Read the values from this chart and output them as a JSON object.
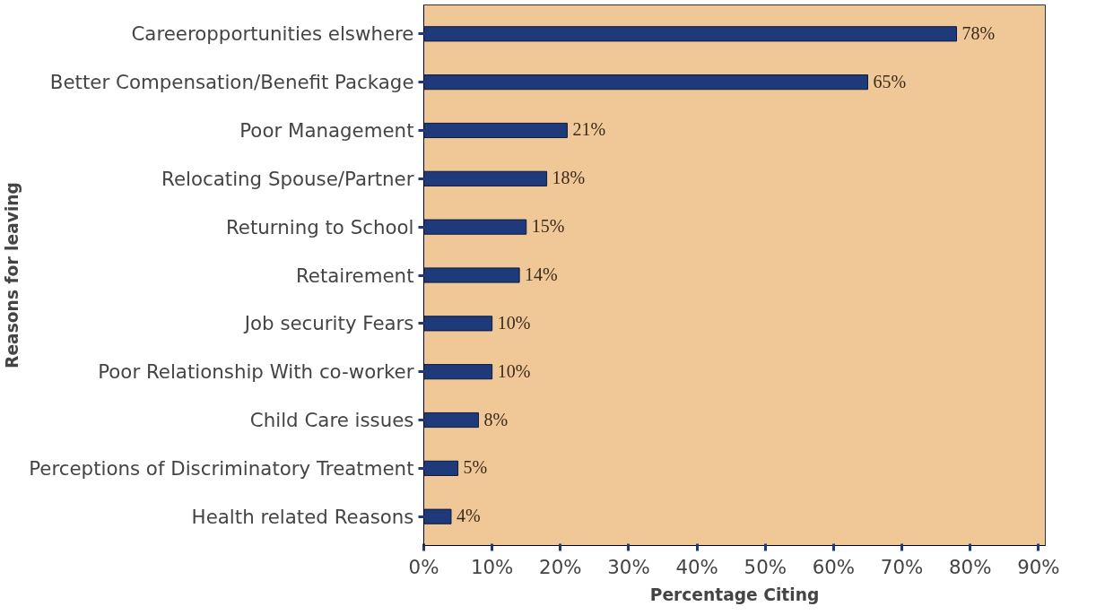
{
  "chart_data": {
    "type": "bar",
    "orientation": "horizontal",
    "xlabel": "Percentage Citing",
    "ylabel": "Reasons for leaving",
    "categories": [
      "Careeropportunities elswhere",
      "Better Compensation/Benefit Package",
      "Poor Management",
      "Relocating Spouse/Partner",
      "Returning to School",
      "Retairement",
      "Job security Fears",
      "Poor Relationship With co-worker",
      "Child Care issues",
      "Perceptions of Discriminatory Treatment",
      "Health related Reasons"
    ],
    "values": [
      78,
      65,
      21,
      18,
      15,
      14,
      10,
      10,
      8,
      5,
      4
    ],
    "value_labels": [
      "78%",
      "65%",
      "21%",
      "18%",
      "15%",
      "14%",
      "10%",
      "10%",
      "8%",
      "5%",
      "4%"
    ],
    "color": "#1f3a7a",
    "xlim": [
      0,
      91
    ],
    "xticks": [
      {
        "value": 0,
        "label": "0%"
      },
      {
        "value": 10,
        "label": "10%"
      },
      {
        "value": 20,
        "label": "20%"
      },
      {
        "value": 30,
        "label": "30%"
      },
      {
        "value": 40,
        "label": "40%"
      },
      {
        "value": 50,
        "label": "50%"
      },
      {
        "value": 60,
        "label": "60%"
      },
      {
        "value": 70,
        "label": "70%"
      },
      {
        "value": 80,
        "label": "80%"
      },
      {
        "value": 90,
        "label": "90%"
      }
    ],
    "grid": false
  }
}
